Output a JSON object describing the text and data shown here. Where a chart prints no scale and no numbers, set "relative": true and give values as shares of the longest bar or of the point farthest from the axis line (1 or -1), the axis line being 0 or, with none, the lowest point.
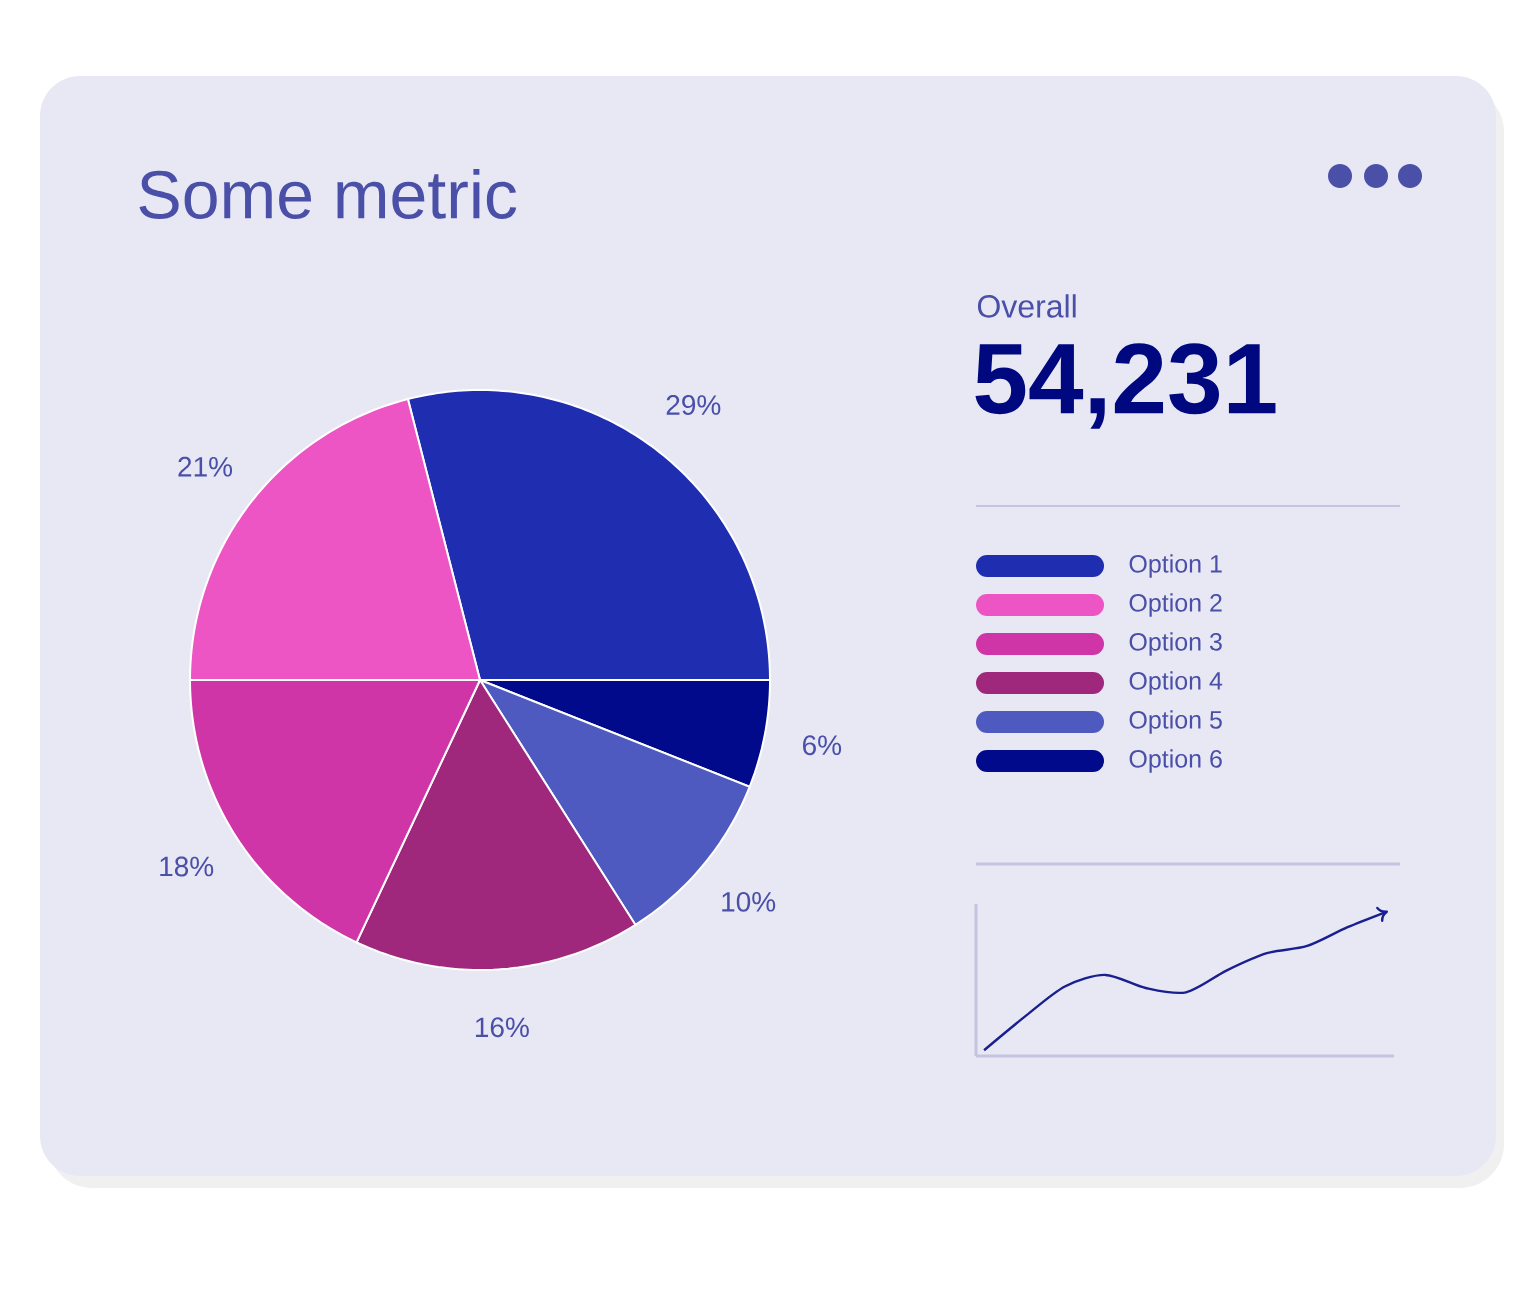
{
  "chart_data": [
    {
      "type": "pie",
      "title": "Some metric",
      "legend": "right",
      "categories": [
        "Option 1",
        "Option 6",
        "Option 5",
        "Option 4",
        "Option 3",
        "Option 2"
      ],
      "values": [
        29,
        6,
        10,
        16,
        18,
        21
      ],
      "value_labels": [
        "29%",
        "6%",
        "10%",
        "16%",
        "18%",
        "21%"
      ],
      "colors": [
        "#1f2db0",
        "#000a8a",
        "#4e5abf",
        "#a0287c",
        "#d035a8",
        "#ee55c4"
      ]
    },
    {
      "type": "other",
      "title": "Overall",
      "annotations": [
        "54,231"
      ]
    },
    {
      "type": "line",
      "relative": true,
      "color": "#1a1f8f",
      "categories": [
        null,
        null,
        null,
        null,
        null,
        null,
        null,
        null,
        null,
        null,
        null
      ],
      "values": [
        0.04,
        0.27,
        0.48,
        0.56,
        0.47,
        0.44,
        0.59,
        0.71,
        0.76,
        0.89,
        1.0
      ]
    }
  ]
}
